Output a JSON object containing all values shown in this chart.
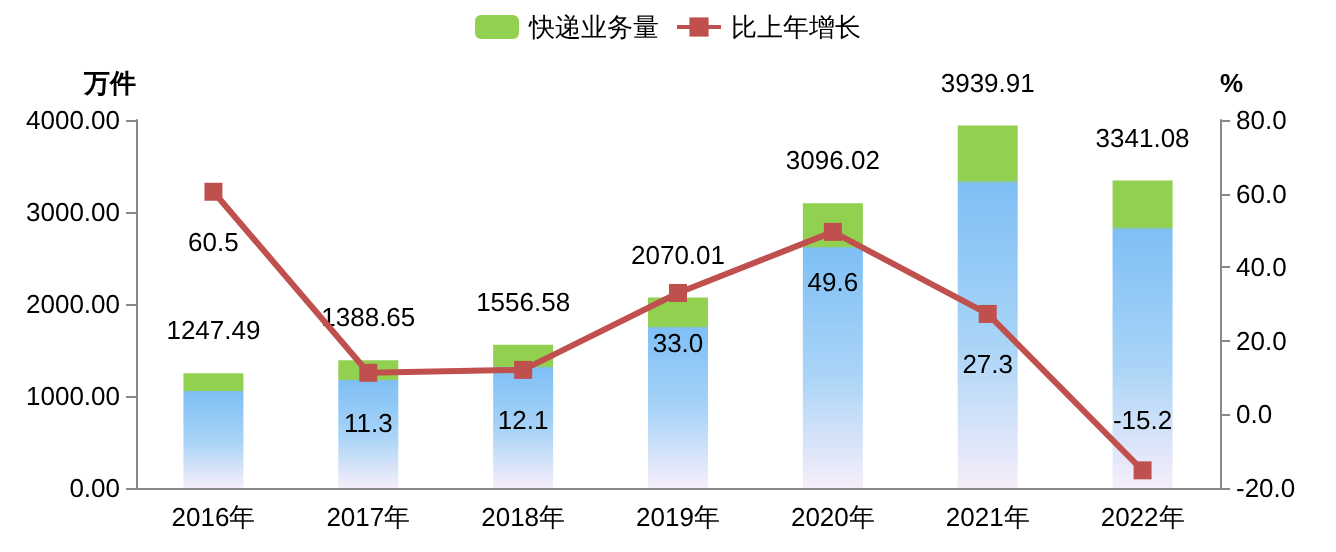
{
  "chart_data": {
    "type": "bar",
    "categories": [
      "2016年",
      "2017年",
      "2018年",
      "2019年",
      "2020年",
      "2021年",
      "2022年"
    ],
    "ylabel": "万件",
    "y2label": "%",
    "series": [
      {
        "name": "快递业务量",
        "color": "#92d050",
        "values": [
          1247.49,
          1388.65,
          1556.58,
          2070.01,
          3096.02,
          3939.91,
          3341.08
        ]
      },
      {
        "name": "比上年增长",
        "type": "line",
        "axis": "y2",
        "color": "#c0504d",
        "marker": "square",
        "values": [
          60.5,
          11.3,
          12.1,
          33.0,
          49.6,
          27.3,
          -15.2
        ],
        "value_labels": [
          "60.5",
          "11.3",
          "12.1",
          "33.0",
          "49.6",
          "27.3",
          "-15.2"
        ]
      }
    ],
    "data_labels": true,
    "ylim": [
      0,
      4000
    ],
    "yticks": [
      {
        "value": 0,
        "label": "0.00"
      },
      {
        "value": 1000,
        "label": "1000.00"
      },
      {
        "value": 2000,
        "label": "2000.00"
      },
      {
        "value": 3000,
        "label": "3000.00"
      },
      {
        "value": 4000,
        "label": "4000.00"
      }
    ],
    "y2lim": [
      -20,
      80
    ],
    "y2ticks": [
      {
        "value": -20,
        "label": "-20.0"
      },
      {
        "value": 0,
        "label": "0.0"
      },
      {
        "value": 20,
        "label": "20.0"
      },
      {
        "value": 40,
        "label": "40.0"
      },
      {
        "value": 60,
        "label": "60.0"
      },
      {
        "value": 80,
        "label": "80.0"
      }
    ],
    "grid": false,
    "legend": "top"
  }
}
